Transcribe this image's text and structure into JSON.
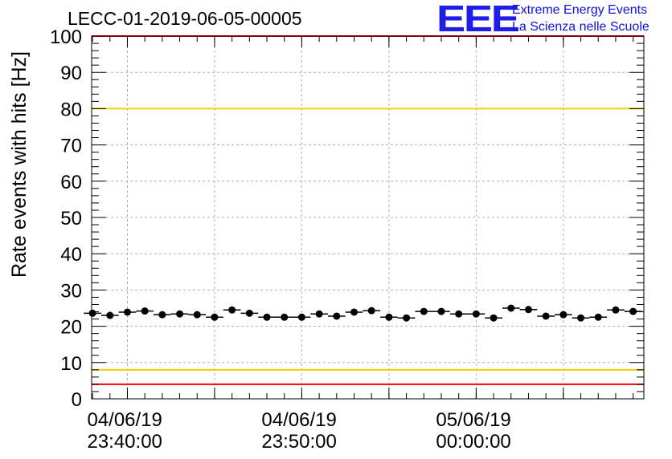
{
  "header": {
    "run_title": "LECC-01-2019-06-05-00005",
    "logo_mark": "EEE",
    "logo_line1": "Extreme Energy Events",
    "logo_line2": "La Scienza nelle Scuole"
  },
  "colors": {
    "markers": "#000000",
    "red_limit": "#ff0000",
    "yellow_limit": "#f0d000",
    "grid": "#b0b0b0",
    "logo": "#1e1ee6"
  },
  "chart_data": {
    "type": "scatter",
    "title": "LECC-01-2019-06-05-00005",
    "ylabel": "Rate events with hits [Hz]",
    "xlabel": "",
    "ylim": [
      0,
      100
    ],
    "xlim": [
      "04/06/19 23:37:57",
      "05/06/19 00:09:37"
    ],
    "grid": true,
    "yticks": [
      "0",
      "10",
      "20",
      "30",
      "40",
      "50",
      "60",
      "70",
      "80",
      "90",
      "100"
    ],
    "xticks": [
      {
        "date": "04/06/19",
        "time": "23:40:00"
      },
      {
        "date": "04/06/19",
        "time": "23:50:00"
      },
      {
        "date": "05/06/19",
        "time": "00:00:00"
      }
    ],
    "bin_width_seconds": 60,
    "series": [
      {
        "x": [
          "04/06/19 23:38:00",
          "04/06/19 23:39:00",
          "04/06/19 23:40:00",
          "04/06/19 23:41:00",
          "04/06/19 23:42:00",
          "04/06/19 23:43:00",
          "04/06/19 23:44:00",
          "04/06/19 23:45:00",
          "04/06/19 23:46:00",
          "04/06/19 23:47:00",
          "04/06/19 23:48:00",
          "04/06/19 23:49:00",
          "04/06/19 23:50:00",
          "04/06/19 23:51:00",
          "04/06/19 23:52:00",
          "04/06/19 23:53:00",
          "04/06/19 23:54:00",
          "04/06/19 23:55:00",
          "04/06/19 23:56:00",
          "04/06/19 23:57:00",
          "04/06/19 23:58:00",
          "04/06/19 23:59:00",
          "05/06/19 00:00:00",
          "05/06/19 00:01:00",
          "05/06/19 00:02:00",
          "05/06/19 00:03:00",
          "05/06/19 00:04:00",
          "05/06/19 00:05:00",
          "05/06/19 00:06:00",
          "05/06/19 00:07:00",
          "05/06/19 00:08:00",
          "05/06/19 00:09:00"
        ],
        "y": [
          23.6,
          23.0,
          23.9,
          24.2,
          23.2,
          23.4,
          23.2,
          22.5,
          24.5,
          23.6,
          22.5,
          22.5,
          22.5,
          23.4,
          22.8,
          23.9,
          24.3,
          22.5,
          22.3,
          24.1,
          24.1,
          23.4,
          23.4,
          22.3,
          25.0,
          24.6,
          22.8,
          23.2,
          22.3,
          22.5,
          24.5,
          24.1
        ]
      }
    ],
    "reference_lines": [
      {
        "y": 100,
        "color": "red"
      },
      {
        "y": 4,
        "color": "red"
      },
      {
        "y": 80,
        "color": "yellow"
      },
      {
        "y": 8,
        "color": "yellow"
      }
    ]
  }
}
